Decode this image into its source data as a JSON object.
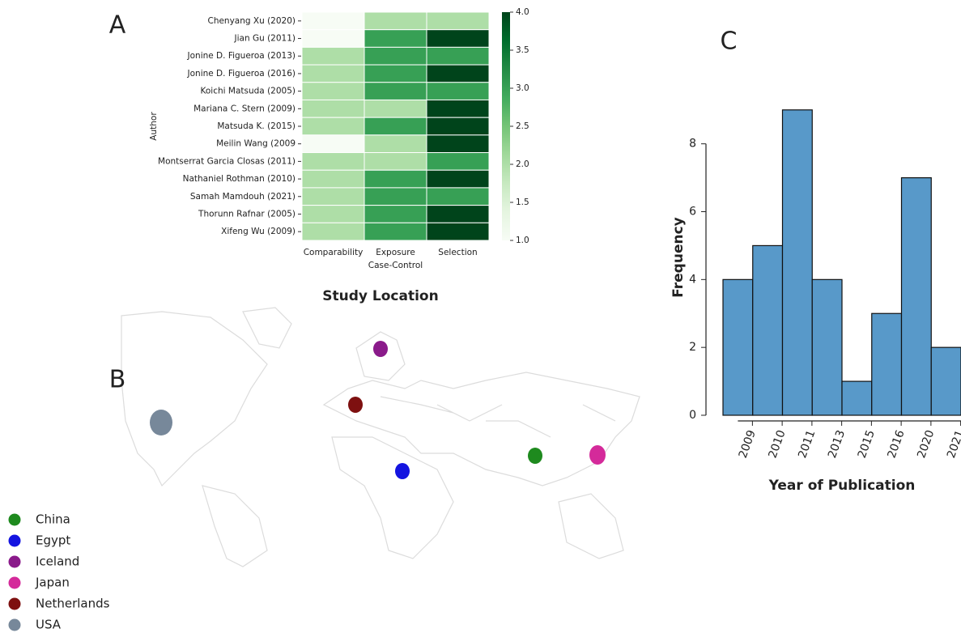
{
  "chart_data": [
    {
      "type": "heatmap",
      "panel": "A",
      "rows": [
        "Chenyang Xu (2020)",
        "Jian Gu (2011)",
        "Jonine D. Figueroa (2013)",
        "Jonine D. Figueroa (2016)",
        "Koichi Matsuda (2005)",
        "Mariana C. Stern (2009)",
        "Matsuda K. (2015)",
        "Meilin Wang (2009",
        "Montserrat Garcia Closas (2011)",
        "Nathaniel Rothman (2010)",
        "Samah Mamdouh (2021)",
        "Thorunn Rafnar (2005)",
        "Xifeng Wu (2009)"
      ],
      "columns": [
        "Comparability",
        "Exposure",
        "Selection"
      ],
      "values": [
        [
          1,
          2,
          2
        ],
        [
          1,
          3,
          4
        ],
        [
          2,
          3,
          3
        ],
        [
          2,
          3,
          4
        ],
        [
          2,
          3,
          3
        ],
        [
          2,
          2,
          4
        ],
        [
          2,
          3,
          4
        ],
        [
          1,
          2,
          4
        ],
        [
          2,
          2,
          3
        ],
        [
          2,
          3,
          4
        ],
        [
          2,
          3,
          3
        ],
        [
          2,
          3,
          4
        ],
        [
          2,
          3,
          4
        ]
      ],
      "x_label": "Case-Control",
      "y_label": "Author",
      "colormap": "Greens",
      "clim": [
        1,
        4
      ],
      "cticks": [
        {
          "value": 1,
          "label": "1.0"
        },
        {
          "value": 1.5,
          "label": "1.5"
        },
        {
          "value": 2,
          "label": "2.0"
        },
        {
          "value": 2.5,
          "label": "2.5"
        },
        {
          "value": 3,
          "label": "3.0"
        },
        {
          "value": 3.5,
          "label": "3.5"
        },
        {
          "value": 4,
          "label": "4.0"
        }
      ]
    },
    {
      "type": "map",
      "panel": "B",
      "title": "Study Location",
      "points": [
        {
          "name": "China",
          "color": "#1e8a1e"
        },
        {
          "name": "Egypt",
          "color": "#1414e0"
        },
        {
          "name": "Iceland",
          "color": "#8a1a8a"
        },
        {
          "name": "Japan",
          "color": "#d42a9a"
        },
        {
          "name": "Netherlands",
          "color": "#7e1010"
        },
        {
          "name": "USA",
          "color": "#77889a"
        }
      ]
    },
    {
      "type": "bar",
      "panel": "C",
      "x_label": "Year of Publication",
      "y_label": "Frequency",
      "categories": [
        "2009",
        "2010",
        "2011",
        "2013",
        "2015",
        "2016",
        "2020",
        "2021"
      ],
      "values": [
        4,
        5,
        9,
        4,
        1,
        3,
        7,
        2
      ],
      "color": "#5899c9",
      "ylim": [
        0,
        9.4
      ],
      "yticks": [
        0,
        2,
        4,
        6,
        8
      ]
    }
  ]
}
